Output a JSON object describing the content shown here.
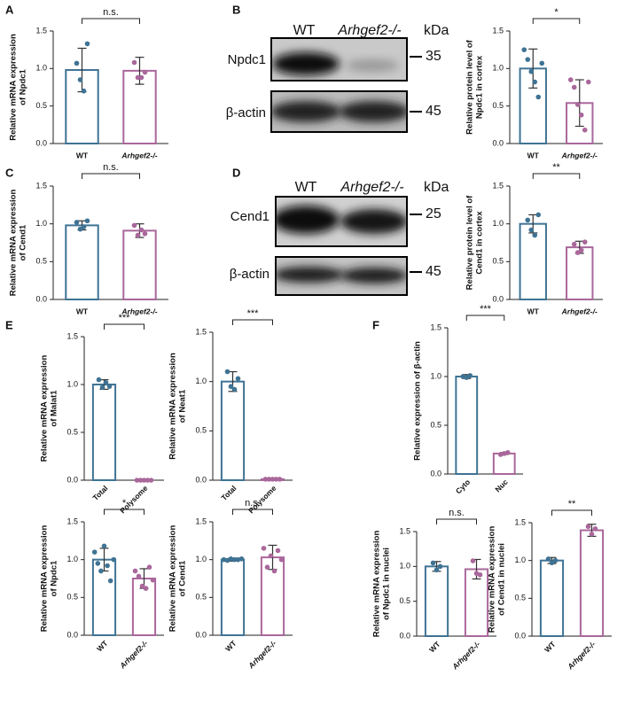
{
  "panel_labels": [
    "A",
    "B",
    "C",
    "D",
    "E",
    "F"
  ],
  "blots": [
    {
      "columns": [
        "WT",
        "Arhgef2-/-"
      ],
      "unit": "kDa",
      "rows": [
        {
          "name": "Npdc1",
          "marker": 35
        },
        {
          "name": "β-actin",
          "marker": 45
        }
      ]
    },
    {
      "columns": [
        "WT",
        "Arhgef2-/-"
      ],
      "unit": "kDa",
      "rows": [
        {
          "name": "Cend1",
          "marker": 25
        },
        {
          "name": "β-actin",
          "marker": 45
        }
      ]
    }
  ],
  "chart_data": [
    {
      "type": "bar",
      "ylabel": [
        "Relative mRNA expression",
        "of Npdc1"
      ],
      "categories": [
        "WT",
        "Arhgef2-/-"
      ],
      "values": [
        0.98,
        0.97
      ],
      "errors": [
        0.29,
        0.18
      ],
      "points": [
        [
          1.07,
          0.85,
          0.7,
          1.33
        ],
        [
          1.08,
          0.88,
          0.88,
          0.95
        ]
      ],
      "colors": [
        "#3f7394",
        "#a9679b"
      ],
      "ylim": [
        0,
        1.5
      ],
      "yticks": [
        {
          "value": 0,
          "label": "0.0"
        },
        0.5,
        {
          "value": 1,
          "label": "1.0"
        },
        1.5
      ],
      "significance": "n.s."
    },
    {
      "type": "bar",
      "ylabel": [
        "Relative protein level of",
        "Npdc1 in cortex"
      ],
      "categories": [
        "WT",
        "Arhgef2-/-"
      ],
      "values": [
        1.0,
        0.54
      ],
      "errors": [
        0.26,
        0.31
      ],
      "points": [
        [
          1.25,
          1.12,
          0.96,
          0.82,
          0.62,
          1.07
        ],
        [
          0.85,
          0.75,
          0.52,
          0.38,
          0.18,
          0.82
        ]
      ],
      "colors": [
        "#3f7394",
        "#a9679b"
      ],
      "ylim": [
        0,
        1.5
      ],
      "yticks": [
        {
          "value": 0,
          "label": "0.0"
        },
        0.5,
        {
          "value": 1,
          "label": "1.0"
        },
        1.5
      ],
      "significance": "*"
    },
    {
      "type": "bar",
      "ylabel": [
        "Relative mRNA expression",
        "of Cend1"
      ],
      "categories": [
        "WT",
        "Arhgef2-/-"
      ],
      "values": [
        0.98,
        0.91
      ],
      "errors": [
        0.06,
        0.09
      ],
      "points": [
        [
          1.02,
          0.93,
          0.96,
          1.04
        ],
        [
          0.98,
          0.85,
          0.92,
          0.87
        ]
      ],
      "colors": [
        "#3f7394",
        "#a9679b"
      ],
      "ylim": [
        0,
        1.5
      ],
      "yticks": [
        {
          "value": 0,
          "label": "0.0"
        },
        0.5,
        {
          "value": 1,
          "label": "1.0"
        },
        1.5
      ],
      "significance": "n.s."
    },
    {
      "type": "bar",
      "ylabel": [
        "Relative protein level of",
        "Cend1 in cortex"
      ],
      "categories": [
        "WT",
        "Arhgef2-/-"
      ],
      "values": [
        1.0,
        0.69
      ],
      "errors": [
        0.12,
        0.08
      ],
      "points": [
        [
          1.05,
          0.92,
          0.85,
          1.12
        ],
        [
          0.73,
          0.62,
          0.65,
          0.76
        ]
      ],
      "colors": [
        "#3f7394",
        "#a9679b"
      ],
      "ylim": [
        0,
        1.5
      ],
      "yticks": [
        {
          "value": 0,
          "label": "0.0"
        },
        0.5,
        {
          "value": 1,
          "label": "1.0"
        },
        1.5
      ],
      "significance": "**"
    },
    {
      "type": "bar",
      "ylabel": [
        "Relative mRNA expression",
        "of Malat1"
      ],
      "categories": [
        "Total",
        "Polysome"
      ],
      "values": [
        1.0,
        0.0
      ],
      "errors": [
        0.05,
        0.0
      ],
      "points": [
        [
          1.05,
          0.97,
          1.02,
          0.98
        ],
        [
          0,
          0,
          0,
          0,
          0
        ]
      ],
      "colors": [
        "#3f7394",
        "#a9679b"
      ],
      "ylim": [
        0,
        1.5
      ],
      "yticks": [
        {
          "value": 0,
          "label": "0.0"
        },
        0.5,
        {
          "value": 1,
          "label": "1.0"
        },
        1.5
      ],
      "significance": "***"
    },
    {
      "type": "bar",
      "ylabel": [
        "Relative mRNA expression",
        "of Neat1"
      ],
      "categories": [
        "Total",
        "Polysome"
      ],
      "values": [
        1.0,
        0.01
      ],
      "errors": [
        0.1,
        0.005
      ],
      "points": [
        [
          1.1,
          0.95,
          0.92,
          1.03
        ],
        [
          0.01,
          0.01,
          0.01,
          0.01,
          0.01
        ]
      ],
      "colors": [
        "#3f7394",
        "#a9679b"
      ],
      "ylim": [
        0,
        1.5
      ],
      "yticks": [
        {
          "value": 0,
          "label": "0.0"
        },
        0.5,
        {
          "value": 1,
          "label": "1.0"
        },
        1.5
      ],
      "significance": "***"
    },
    {
      "type": "bar",
      "ylabel": [
        "Relative expression of β-actin"
      ],
      "categories": [
        "Cyto",
        "Nuc"
      ],
      "values": [
        1.0,
        0.21
      ],
      "errors": [
        0.02,
        0.01
      ],
      "points": [
        [
          1.0,
          0.99,
          1.01
        ],
        [
          0.2,
          0.21,
          0.22
        ]
      ],
      "colors": [
        "#3f7394",
        "#a9679b"
      ],
      "ylim": [
        0,
        1.5
      ],
      "yticks": [
        {
          "value": 0,
          "label": "0.0"
        },
        0.5,
        {
          "value": 1,
          "label": "1.0"
        },
        1.5
      ],
      "significance": "***"
    },
    {
      "type": "bar",
      "ylabel": [
        "Relative mRNA expression",
        "of Npdc1"
      ],
      "categories": [
        "WT",
        "Arhgef2-/-"
      ],
      "values": [
        1.0,
        0.75
      ],
      "errors": [
        0.15,
        0.13
      ],
      "points": [
        [
          1.1,
          0.95,
          0.85,
          1.18,
          0.92,
          0.72,
          1.0
        ],
        [
          0.85,
          0.78,
          0.65,
          0.62,
          0.9,
          0.73
        ]
      ],
      "colors": [
        "#3f7394",
        "#a9679b"
      ],
      "ylim": [
        0,
        1.5
      ],
      "yticks": [
        {
          "value": 0,
          "label": "0.0"
        },
        0.5,
        {
          "value": 1,
          "label": "1.0"
        },
        1.5
      ],
      "significance": "*"
    },
    {
      "type": "bar",
      "ylabel": [
        "Relative mRNA expression",
        "of Cend1"
      ],
      "categories": [
        "WT",
        "Arhgef2-/-"
      ],
      "values": [
        1.0,
        1.03
      ],
      "errors": [
        0.02,
        0.16
      ],
      "points": [
        [
          1.0,
          0.99,
          1.01,
          1.0,
          1.0,
          1.01
        ],
        [
          1.15,
          0.9,
          1.05,
          0.85,
          1.12,
          1.0
        ]
      ],
      "colors": [
        "#3f7394",
        "#a9679b"
      ],
      "ylim": [
        0,
        1.5
      ],
      "yticks": [
        {
          "value": 0,
          "label": "0.0"
        },
        0.5,
        {
          "value": 1,
          "label": "1.0"
        },
        1.5
      ],
      "significance": "n.s."
    },
    {
      "type": "bar",
      "ylabel": [
        "Relative mRNA expression",
        "of Npdc1 in nuclei"
      ],
      "categories": [
        "WT",
        "Arhgef2-/-"
      ],
      "values": [
        1.0,
        0.96
      ],
      "errors": [
        0.07,
        0.14
      ],
      "points": [
        [
          1.05,
          0.95,
          1.0
        ],
        [
          1.08,
          0.9,
          0.88
        ]
      ],
      "colors": [
        "#3f7394",
        "#a9679b"
      ],
      "ylim": [
        0,
        1.5
      ],
      "yticks": [
        {
          "value": 0,
          "label": "0.0"
        },
        0.5,
        {
          "value": 1,
          "label": "1.0"
        },
        1.5
      ],
      "significance": "n.s."
    },
    {
      "type": "bar",
      "ylabel": [
        "Relative mRNA expression",
        "of Cend1 in nuclei"
      ],
      "categories": [
        "WT",
        "Arhgef2-/-"
      ],
      "values": [
        1.0,
        1.4
      ],
      "errors": [
        0.04,
        0.08
      ],
      "points": [
        [
          1.02,
          0.97,
          1.0
        ],
        [
          1.45,
          1.35,
          1.42
        ]
      ],
      "colors": [
        "#3f7394",
        "#a9679b"
      ],
      "ylim": [
        0,
        1.5
      ],
      "yticks": [
        {
          "value": 0,
          "label": "0.0"
        },
        0.5,
        {
          "value": 1,
          "label": "1.0"
        },
        1.5
      ],
      "significance": "**"
    }
  ]
}
